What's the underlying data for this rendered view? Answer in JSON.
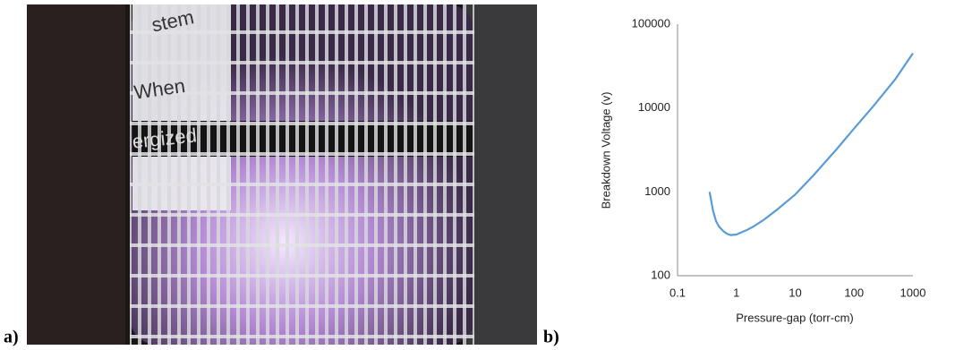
{
  "panel_labels": [
    "a)",
    "b)"
  ],
  "photo": {
    "sign_text": [
      "stem",
      "When",
      "ergized"
    ]
  },
  "chart_data": {
    "type": "line",
    "xlabel": "Pressure-gap (torr-cm)",
    "ylabel": "Breakdown Voltage (v)",
    "xscale": "log",
    "yscale": "log",
    "grid": false,
    "color": "#5b9bd5",
    "x": [
      0.35,
      0.4,
      0.45,
      0.5,
      0.6,
      0.7,
      0.8,
      1,
      1.5,
      2,
      3,
      5,
      10,
      20,
      50,
      100,
      200,
      500,
      1000
    ],
    "values": [
      1000,
      600,
      450,
      390,
      340,
      315,
      305,
      310,
      350,
      390,
      470,
      620,
      930,
      1550,
      3200,
      5700,
      10000,
      22000,
      45000
    ],
    "xlim": [
      0.1,
      1000
    ],
    "xticks": [
      0.1,
      1,
      10,
      100,
      1000
    ],
    "ylim": [
      100,
      100000
    ],
    "yticks": [
      100,
      1000,
      10000,
      100000
    ]
  }
}
